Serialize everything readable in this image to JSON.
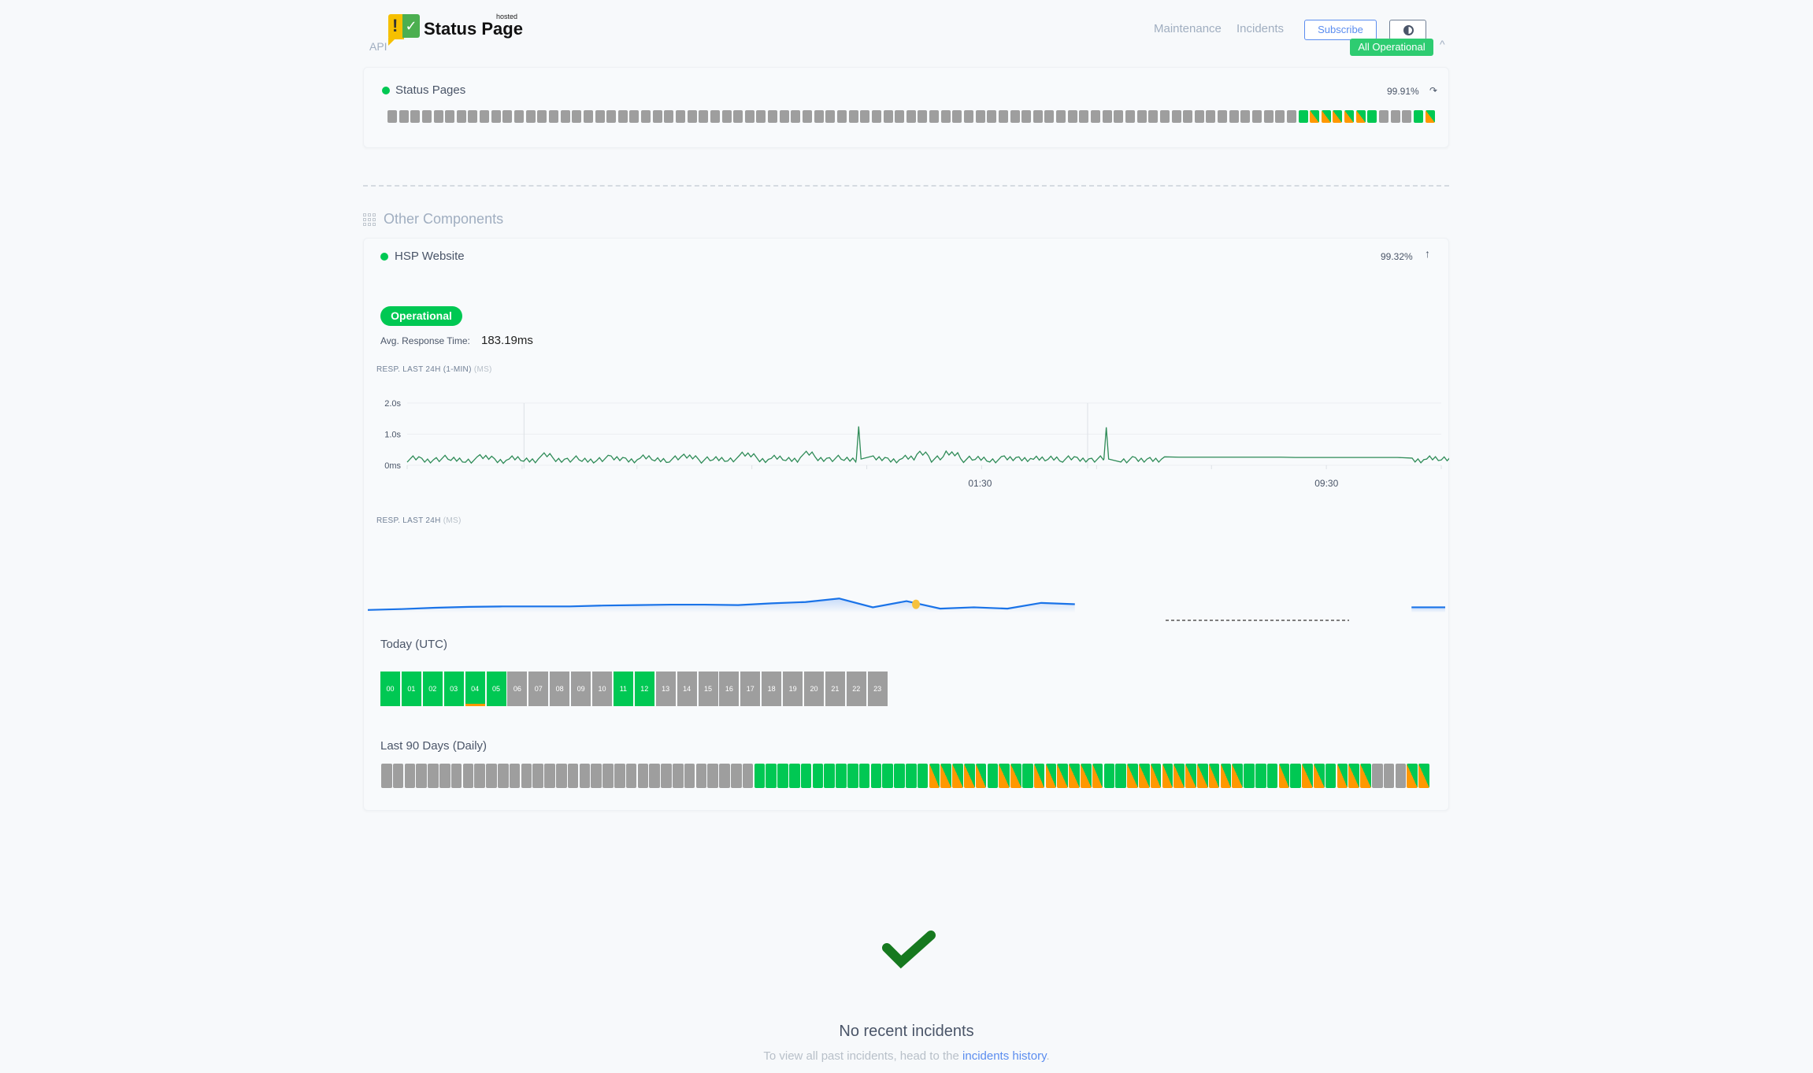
{
  "header": {
    "logo_text": "Status Page",
    "logo_hosted": "hosted",
    "api_label": "API",
    "nav": [
      "Maintenance",
      "Incidents"
    ],
    "subscribe_label": "Subscribe",
    "overall_status": "All Operational"
  },
  "status_pages": {
    "name": "Status Pages",
    "uptime": "99.91%",
    "days": "gggggggggggggggggggggggggggggggggggggggggggggggggggggggggggggggggggggggggggggggGSSSSSGgggGS"
  },
  "other_components": {
    "title": "Other Components",
    "component": {
      "name": "HSP Website",
      "uptime": "99.32%",
      "status": "Operational",
      "avg_label": "Avg. Response Time:",
      "avg_value": "183.19ms",
      "chart1_label": "RESP. LAST 24H (1-MIN)",
      "chart1_unit": "(MS)",
      "chart2_label": "RESP. LAST 24H",
      "chart2_unit": "(MS)",
      "today_label": "Today (UTC)",
      "hours": [
        {
          "h": "00",
          "s": "G"
        },
        {
          "h": "01",
          "s": "G"
        },
        {
          "h": "02",
          "s": "G"
        },
        {
          "h": "03",
          "s": "G"
        },
        {
          "h": "04",
          "s": "GO"
        },
        {
          "h": "05",
          "s": "G"
        },
        {
          "h": "06",
          "s": "g"
        },
        {
          "h": "07",
          "s": "g"
        },
        {
          "h": "08",
          "s": "g"
        },
        {
          "h": "09",
          "s": "g"
        },
        {
          "h": "10",
          "s": "g"
        },
        {
          "h": "11",
          "s": "G"
        },
        {
          "h": "12",
          "s": "G"
        },
        {
          "h": "13",
          "s": "g"
        },
        {
          "h": "14",
          "s": "g"
        },
        {
          "h": "15",
          "s": "g"
        },
        {
          "h": "16",
          "s": "g"
        },
        {
          "h": "17",
          "s": "g"
        },
        {
          "h": "18",
          "s": "g"
        },
        {
          "h": "19",
          "s": "g"
        },
        {
          "h": "20",
          "s": "g"
        },
        {
          "h": "21",
          "s": "g"
        },
        {
          "h": "22",
          "s": "g"
        },
        {
          "h": "23",
          "s": "g"
        }
      ],
      "days_label": "Last 90 Days (Daily)",
      "days": "ggggggggggggggggggggggggggggggggGGGGGGGGGGGGGGGSSSSSGSSGSSSSSSGGSSSSSSSSSSGGGSGSSGSSSgggSS"
    }
  },
  "colors": {
    "green": "#00c853",
    "grey": "#9e9e9e",
    "orange": "#ff9800",
    "line": "#2e8b57",
    "area": "#1a73e8",
    "marker": "#f6c23e"
  },
  "chart_data": [
    {
      "type": "line",
      "title": "RESP. LAST 24H (1-MIN) (MS)",
      "y_ticks": [
        "0ms",
        "1.0s",
        "2.0s"
      ],
      "ylim": [
        0,
        2.0
      ],
      "x_ticks": [
        "01:30",
        "09:30"
      ],
      "x_start": "17:20",
      "x_interval_min": 20,
      "y_unit": "s",
      "values": [
        0.2,
        0.15,
        0.22,
        0.18,
        0.17,
        0.24,
        0.16,
        0.2,
        0.18,
        0.3,
        0.17,
        0.2,
        0.15,
        0.22,
        0.2,
        0.18,
        0.23,
        0.19,
        0.2,
        0.28,
        0.17,
        0.2,
        0.21,
        0.32,
        0.19,
        0.22,
        0.2,
        0.35,
        0.2,
        0.22,
        0.18,
        1.25,
        0.2,
        0.18,
        0.22,
        0.4,
        0.2,
        0.38,
        0.19,
        0.21,
        0.18,
        0.2,
        0.22,
        0.19,
        0.24,
        0.2,
        0.18,
        0.2,
        1.22,
        0.18,
        0.15,
        0.2,
        0.27,
        0.26,
        0.26,
        0.26,
        0.26,
        0.26,
        0.26,
        0.26,
        0.26,
        0.25,
        0.25,
        0.25,
        0.25,
        0.25,
        0.25,
        0.25,
        0.25,
        0.18,
        0.2,
        0.22
      ]
    },
    {
      "type": "area",
      "title": "RESP. LAST 24H (MS)",
      "values": [
        170,
        172,
        175,
        177,
        178,
        178,
        178,
        180,
        181,
        182,
        182,
        181,
        185,
        188,
        196,
        176,
        190,
        173,
        176,
        173,
        186,
        183,
        null,
        null,
        null,
        null,
        null,
        null,
        null,
        null,
        null,
        176,
        176
      ],
      "highlight_index": 16
    }
  ],
  "incidents": {
    "title": "No recent incidents",
    "text": "To view all past incidents, head to the",
    "link": "incidents history",
    "suffix": "."
  }
}
